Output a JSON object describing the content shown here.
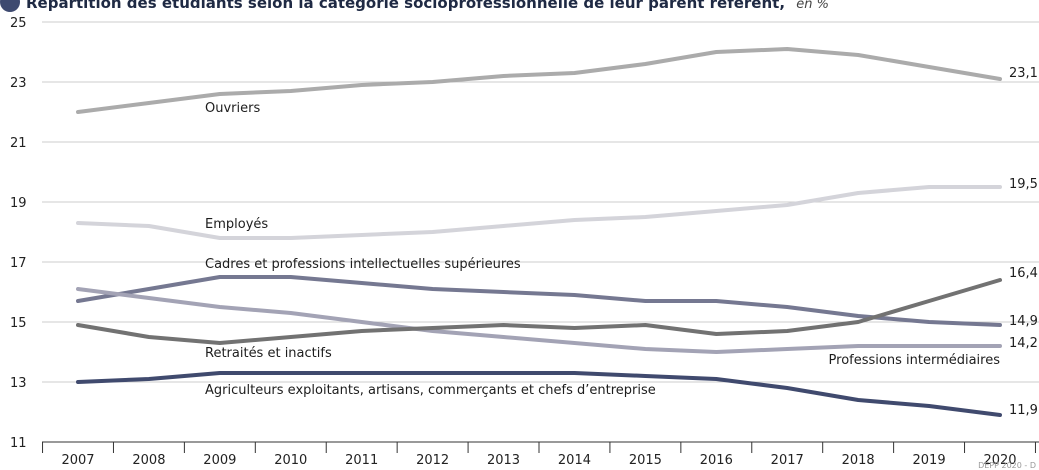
{
  "chart_data": {
    "type": "line",
    "title": "Répartition des étudiants selon la catégorie socioprofessionnelle de leur parent référent,",
    "unit_label": "en %",
    "source": "DEPP 2020 - D",
    "x": [
      "2007",
      "2008",
      "2009",
      "2010",
      "2011",
      "2012",
      "2013",
      "2014",
      "2015",
      "2016",
      "2017",
      "2018",
      "2019",
      "2020"
    ],
    "ylim": [
      11,
      25
    ],
    "yticks": [
      11,
      13,
      15,
      17,
      19,
      21,
      23,
      25
    ],
    "grid": true,
    "series": [
      {
        "name": "Ouvriers",
        "color": "#ababab",
        "end_label": "23,1",
        "values": [
          22.0,
          22.3,
          22.6,
          22.7,
          22.9,
          23.0,
          23.2,
          23.3,
          23.6,
          24.0,
          24.1,
          23.9,
          23.5,
          23.1
        ]
      },
      {
        "name": "Employés",
        "color": "#d4d4da",
        "end_label": "19,5",
        "values": [
          18.3,
          18.2,
          17.8,
          17.8,
          17.9,
          18.0,
          18.2,
          18.4,
          18.5,
          18.7,
          18.9,
          19.3,
          19.5,
          19.5
        ]
      },
      {
        "name": "Cadres et professions intellectuelles supérieures",
        "color": "#757891",
        "end_label": "14,9",
        "values": [
          15.7,
          16.1,
          16.5,
          16.5,
          16.3,
          16.1,
          16.0,
          15.9,
          15.7,
          15.7,
          15.5,
          15.2,
          15.0,
          14.9
        ]
      },
      {
        "name": "Professions intermédiaires",
        "color": "#a3a3b5",
        "end_label": "14,2",
        "values": [
          16.1,
          15.8,
          15.5,
          15.3,
          15.0,
          14.7,
          14.5,
          14.3,
          14.1,
          14.0,
          14.1,
          14.2,
          14.2,
          14.2
        ]
      },
      {
        "name": "Retraités et inactifs",
        "color": "#727272",
        "end_label": "16,4",
        "values": [
          14.9,
          14.5,
          14.3,
          14.5,
          14.7,
          14.8,
          14.9,
          14.8,
          14.9,
          14.6,
          14.7,
          15.0,
          15.7,
          16.4
        ]
      },
      {
        "name": "Agriculteurs exploitants, artisans, commerçants et chefs d’entreprise",
        "color": "#404a6e",
        "end_label": "11,9",
        "values": [
          13.0,
          13.1,
          13.3,
          13.3,
          13.3,
          13.3,
          13.3,
          13.3,
          13.2,
          13.1,
          12.8,
          12.4,
          12.2,
          11.9
        ]
      }
    ]
  }
}
